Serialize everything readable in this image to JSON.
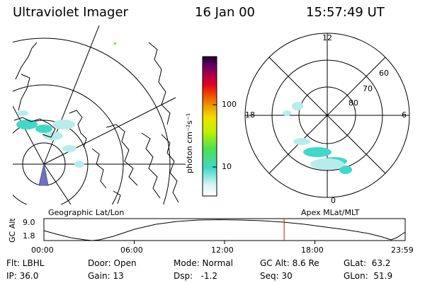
{
  "header": {
    "instrument": "Ultraviolet Imager",
    "date": "16 Jan 00",
    "time": "15:57:49 UT"
  },
  "colors": {
    "background": "#ffffff",
    "line": "#000000",
    "aurora_cyan": "#40d8c8",
    "aurora_light": "#b8ecec",
    "time_marker": "#d01010",
    "green_dot": "#80e020"
  },
  "left_map": {
    "caption": "Geographic Lat/Lon"
  },
  "colorbar": {
    "label": "photon cm⁻²s⁻¹",
    "ticks": [
      "100",
      "10"
    ]
  },
  "right_polar": {
    "caption": "Apex MLat/MLT",
    "mlt_labels": {
      "top": "12",
      "left": "18",
      "right": "6",
      "bottom": "0"
    },
    "lat_labels": [
      "60",
      "70",
      "80"
    ]
  },
  "altitude_plot": {
    "ylabel": "GC Alt",
    "yticks": [
      "9.0",
      "1.8"
    ],
    "xticks": [
      "00:00",
      "06:00",
      "12:00",
      "18:00",
      "23:59"
    ],
    "marker_time_hours": 15.96
  },
  "status": {
    "row1": {
      "flt": "Flt: LBHL",
      "door": "Door: Open",
      "mode": "Mode: Normal",
      "gc_alt": "GC Alt: 8.6 Re",
      "glat": "GLat:  63.2"
    },
    "row2": {
      "ip": "IP: 36.0",
      "gain": "Gain: 13",
      "dsp": "Dsp:   -1.2",
      "seq": "Seq: 30",
      "glon": "GLon:  51.9"
    }
  }
}
